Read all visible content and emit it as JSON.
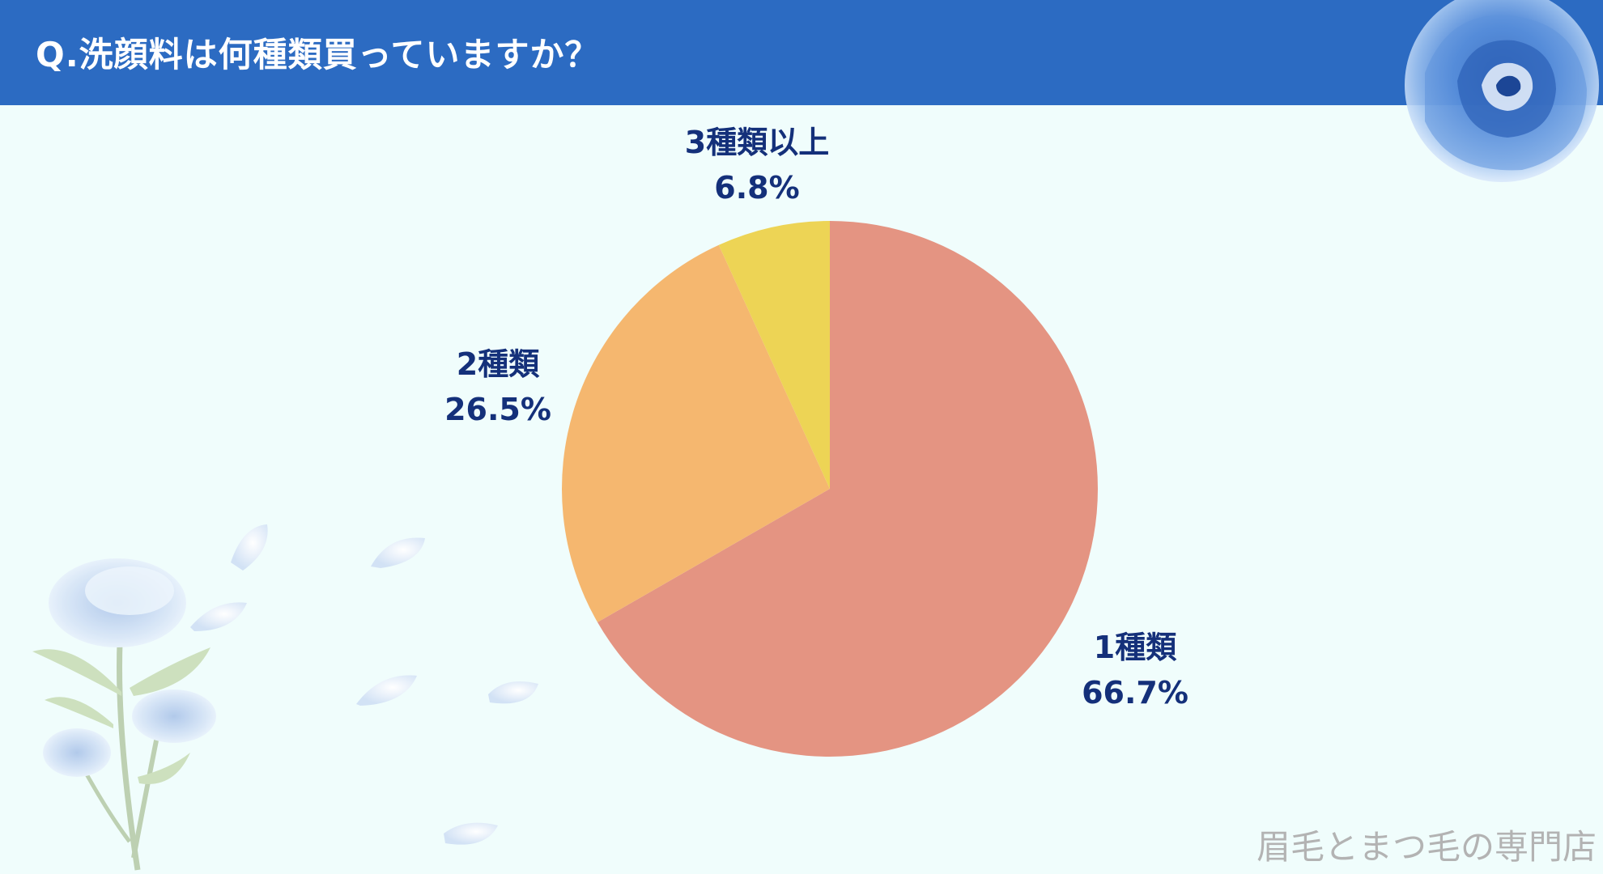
{
  "header": {
    "title": "Q.洗顔料は何種類買っていますか？",
    "background_color": "#2c6bc2"
  },
  "chart_data": {
    "type": "pie",
    "title": "Q.洗顔料は何種類買っていますか？",
    "start_angle": "12 o'clock",
    "direction": "clockwise",
    "slices": [
      {
        "label": "1種類",
        "percent_label": "66.7%",
        "value": 66.7,
        "color": "#e49482"
      },
      {
        "label": "2種類",
        "percent_label": "26.5%",
        "value": 26.5,
        "color": "#f5b76f"
      },
      {
        "label": "3種類以上",
        "percent_label": "6.8%",
        "value": 6.8,
        "color": "#edd455"
      }
    ],
    "label_color": "#14307a"
  },
  "footer": {
    "watermark": "眉毛とまつ毛の専門店"
  },
  "decorations": {
    "top_right": "blue-rose-icon",
    "bottom_left": "blue-rose-branch-icon",
    "petals": "rose-petal-icon"
  }
}
